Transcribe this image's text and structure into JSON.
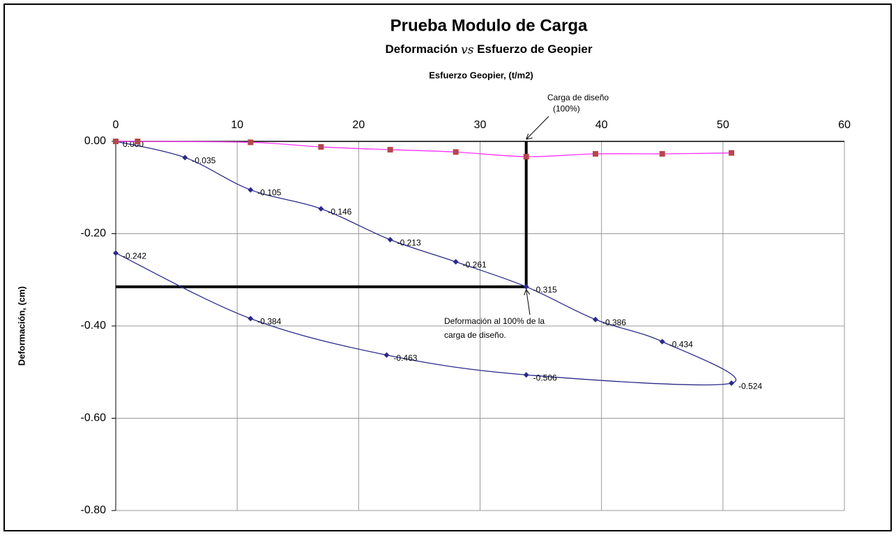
{
  "chart_data": {
    "type": "line",
    "title": "Prueba Modulo de Carga",
    "subtitle": [
      "Deformación ",
      "vs",
      " Esfuerzo de Geopier"
    ],
    "x_label": "Esfuerzo Geopier, (t/m2)",
    "y_label": "Deformación, (cm)",
    "xlim": [
      0,
      60
    ],
    "xticks": [
      0,
      10,
      20,
      30,
      40,
      50,
      60
    ],
    "ylim": [
      -0.8,
      0
    ],
    "yticks": [
      {
        "value": 0,
        "label": "0.00"
      },
      {
        "value": -0.2,
        "label": "-0.20"
      },
      {
        "value": -0.4,
        "label": "-0.40"
      },
      {
        "value": -0.6,
        "label": "-0.60"
      },
      {
        "value": -0.8,
        "label": "-0.80"
      }
    ],
    "grid": true,
    "series": [
      {
        "color": "#2a2a8a",
        "x": [
          0,
          5.7,
          11.1,
          16.9,
          22.6,
          28.0,
          33.8,
          39.5,
          45.0,
          50.7,
          33.8,
          22.3,
          11.1,
          0
        ],
        "values": [
          0,
          -0.035,
          -0.105,
          -0.146,
          -0.213,
          -0.261,
          -0.315,
          -0.386,
          -0.434,
          -0.524,
          -0.506,
          -0.463,
          -0.384,
          -0.242
        ],
        "value_labels": [
          "0.000",
          "-0.035",
          "-0.105",
          "-0.146",
          "-0.213",
          "-0.261",
          "-0.315",
          "-0.386",
          "-0.434",
          "-0.524",
          "-0.506",
          "-0.463",
          "-0.384",
          "-0.242"
        ]
      },
      {
        "color": "#ff33ff",
        "marker_color": "#b5474b",
        "x": [
          0,
          1.8,
          11.1,
          16.9,
          22.6,
          28.0,
          33.8,
          39.5,
          45.0,
          50.7
        ],
        "values": [
          0,
          0,
          -0.002,
          -0.012,
          -0.018,
          -0.023,
          -0.033,
          -0.027,
          -0.027,
          -0.025
        ]
      }
    ],
    "reference_x": 33.8,
    "reference_y": -0.315,
    "annotations": [
      [
        "Carga de diseño",
        "(100%)"
      ],
      [
        "Deformación al 100% de la",
        "carga de diseño."
      ]
    ]
  }
}
